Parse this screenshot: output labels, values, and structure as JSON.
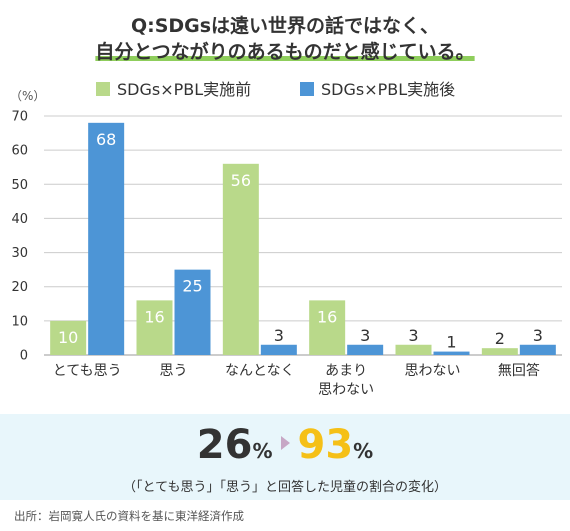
{
  "title": {
    "line1": "Q:SDGsは遠い世界の話ではなく、",
    "line2": "自分とつながりのあるものだと感じている。"
  },
  "colors": {
    "before": "#b9d98a",
    "after": "#4d95d6",
    "label_on_bar": "#ffffff",
    "label_above": "#333333",
    "highlight": "#f5c017",
    "summary_bg": "#e8f6fb"
  },
  "chart_data": {
    "type": "bar",
    "y_unit": "（%）",
    "ylim": [
      0,
      70
    ],
    "yticks": [
      0,
      10,
      20,
      30,
      40,
      50,
      60,
      70
    ],
    "grid": true,
    "legend_position": "top",
    "categories": [
      "とても思う",
      "思う",
      "なんとなく",
      "あまり\n思わない",
      "思わない",
      "無回答"
    ],
    "series": [
      {
        "name": "SDGs×PBL実施前",
        "values": [
          10,
          16,
          56,
          16,
          3,
          2
        ]
      },
      {
        "name": "SDGs×PBL実施後",
        "values": [
          68,
          25,
          3,
          3,
          1,
          3
        ]
      }
    ]
  },
  "summary": {
    "before_value": "26",
    "after_value": "93",
    "unit": "%",
    "note": "（「とても思う」「思う」と回答した児童の割合の変化）"
  },
  "source": "出所：岩岡寛人氏の資料を基に東洋経済作成"
}
